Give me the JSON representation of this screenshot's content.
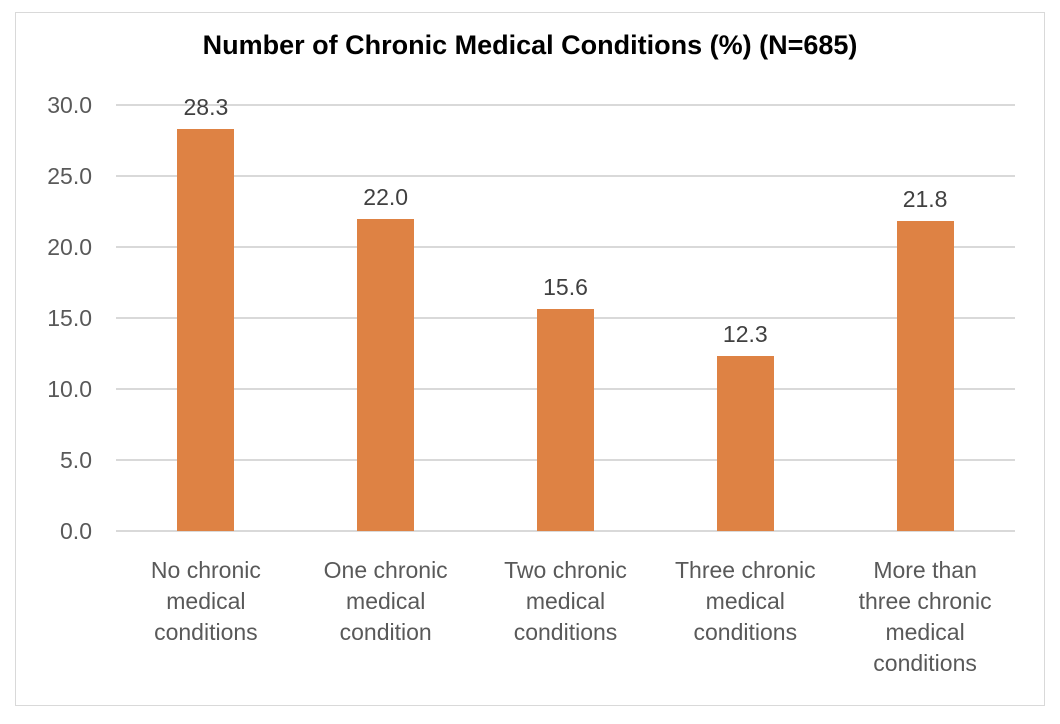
{
  "chart_data": {
    "type": "bar",
    "title": "Number of Chronic Medical Conditions (%) (N=685)",
    "categories": [
      "No chronic medical conditions",
      "One chronic medical condition",
      "Two chronic medical conditions",
      "Three chronic medical conditions",
      "More than three chronic medical conditions"
    ],
    "category_lines": [
      [
        "No chronic",
        "medical",
        "conditions"
      ],
      [
        "One chronic",
        "medical",
        "condition"
      ],
      [
        "Two chronic",
        "medical",
        "conditions"
      ],
      [
        "Three chronic",
        "medical",
        "conditions"
      ],
      [
        "More than",
        "three chronic",
        "medical",
        "conditions"
      ]
    ],
    "values": [
      28.3,
      22.0,
      15.6,
      12.3,
      21.8
    ],
    "data_labels": [
      "28.3",
      "22.0",
      "15.6",
      "12.3",
      "21.8"
    ],
    "xlabel": "",
    "ylabel": "",
    "ylim": [
      0,
      30
    ],
    "ytick_step": 5,
    "ytick_labels": [
      "0.0",
      "5.0",
      "10.0",
      "15.0",
      "20.0",
      "25.0",
      "30.0"
    ],
    "grid": true,
    "legend": "none",
    "colors": {
      "bar": "#de8244",
      "gridline": "#d9d9d9",
      "frame_border": "#d9d9d9",
      "axis_text": "#595959",
      "data_label_text": "#404040",
      "title_text": "#000000",
      "background": "#ffffff"
    }
  }
}
